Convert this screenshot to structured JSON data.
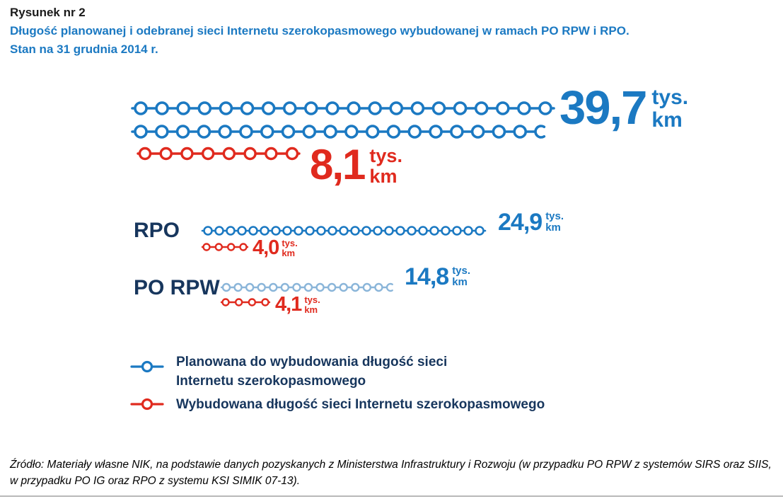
{
  "header": {
    "figure_label": "Rysunek nr 2",
    "title": "Długość planowanej i odebranej sieci Internetu szerokopasmowego wybudowanej w ramach PO RPW i RPO.",
    "subtitle": "Stan na 31 grudnia 2014 r."
  },
  "labels": {
    "tys": "tys.",
    "km": "km"
  },
  "colors": {
    "blue": "#1b79c2",
    "blue-light": "#8ab5d9",
    "red": "#e02a1e",
    "navy": "#17365d",
    "rule": "#b9b9b9"
  },
  "chart_data": {
    "type": "bar",
    "title": "Długość planowanej i odebranej sieci Internetu szerokopasmowego wybudowanej w ramach PO RPW i RPO. Stan na 31 grudnia 2014 r.",
    "unit": "tys. km",
    "categories": [
      "",
      "RPO",
      "PO RPW"
    ],
    "series": [
      {
        "name": "Planowana do wybudowania długość sieci Internetu szerokopasmowego",
        "color": "#1b79c2",
        "values": [
          39.7,
          24.9,
          14.8
        ]
      },
      {
        "name": "Wybudowana długość sieci Internetu szerokopasmowego",
        "color": "#e02a1e",
        "values": [
          8.1,
          4.0,
          4.1
        ]
      }
    ],
    "rows": [
      {
        "category": "",
        "planned_label": "39,7",
        "built_label": "8,1"
      },
      {
        "category": "RPO",
        "planned_label": "24,9",
        "built_label": "4,0"
      },
      {
        "category": "PO RPW",
        "planned_label": "14,8",
        "built_label": "4,1"
      }
    ],
    "legend_position": "bottom-left",
    "grid": false
  },
  "legend": {
    "items": [
      {
        "lines": [
          "Planowana do wybudowania długość sieci",
          "Internetu szerokopasmowego"
        ],
        "color_key": "blue"
      },
      {
        "lines": [
          "Wybudowana długość sieci Internetu szerokopasmowego"
        ],
        "color_key": "red"
      }
    ]
  },
  "source": {
    "text": "Źródło: Materiały własne NIK, na podstawie danych pozyskanych z Ministerstwa Infrastruktury i Rozwoju (w przypadku PO RPW z systemów SIRS oraz SIIS, w przypadku PO IG oraz RPO z systemu KSI SIMIK 07-13)."
  }
}
